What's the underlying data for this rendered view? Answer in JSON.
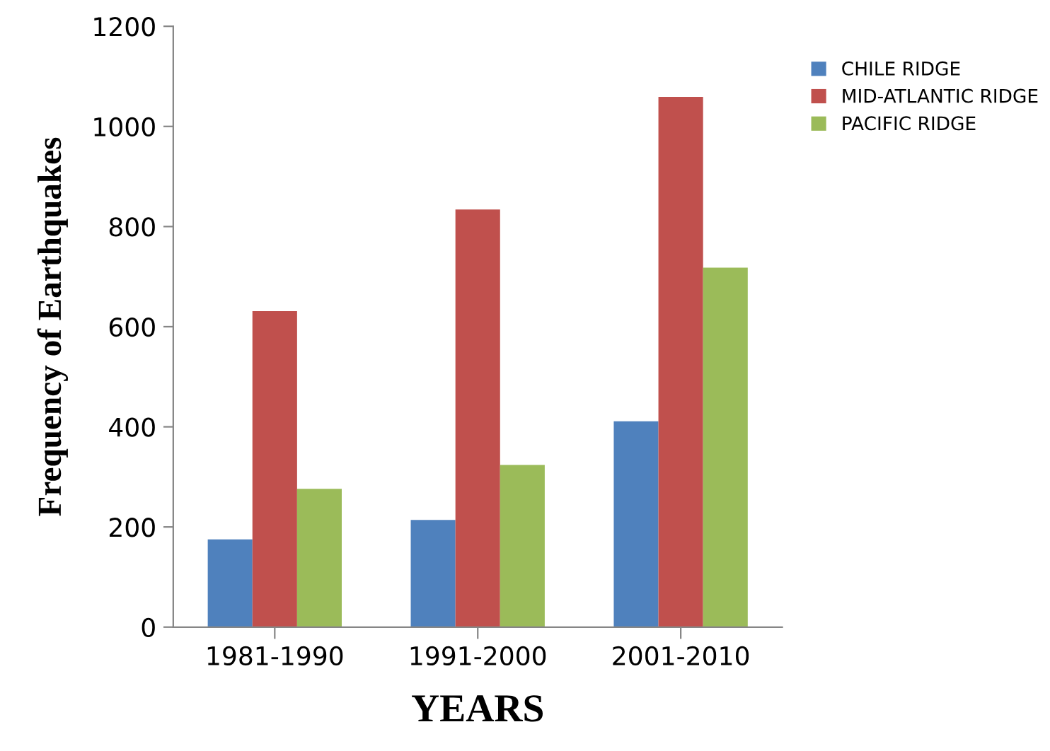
{
  "chart_data": {
    "type": "bar",
    "xlabel": "YEARS",
    "ylabel": "Frequency of Earthquakes",
    "categories": [
      "1981-1990",
      "1991-2000",
      "2001-2010"
    ],
    "series": [
      {
        "name": "CHILE RIDGE",
        "color": "#4f81bd",
        "values": [
          175,
          214,
          411
        ]
      },
      {
        "name": "MID-ATLANTIC RIDGE",
        "color": "#c0504d",
        "values": [
          631,
          834,
          1059
        ]
      },
      {
        "name": "PACIFIC RIDGE",
        "color": "#9bbb59",
        "values": [
          276,
          324,
          718
        ]
      }
    ],
    "ylim": [
      0,
      1200
    ],
    "yticks": [
      0,
      200,
      400,
      600,
      800,
      1000,
      1200
    ],
    "grid": false,
    "legend": "top right"
  }
}
